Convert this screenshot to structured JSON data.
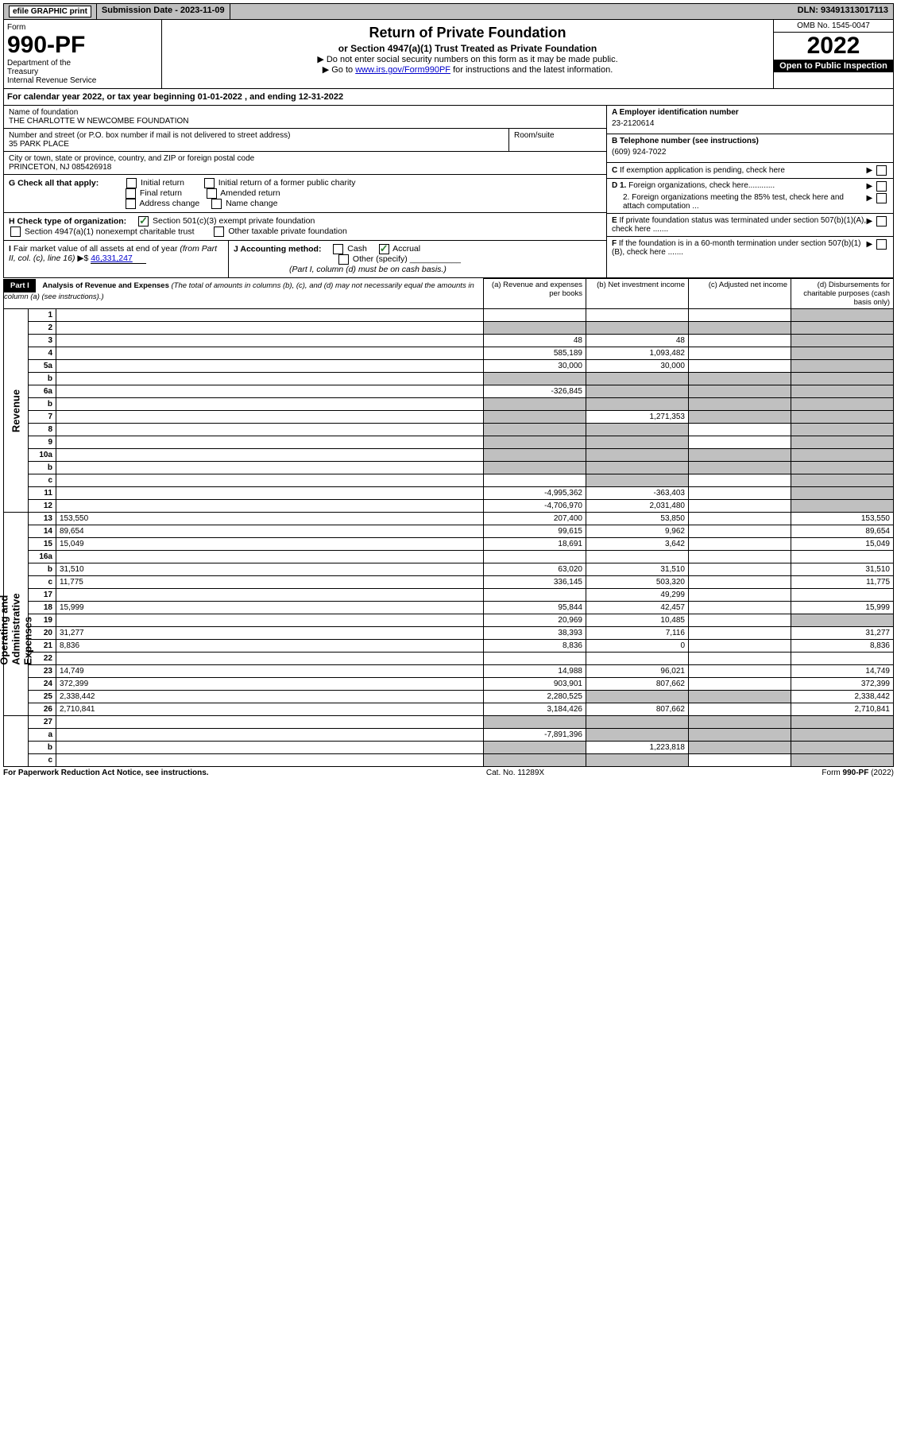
{
  "topbar": {
    "efile": "efile GRAPHIC print",
    "submission": "Submission Date - 2023-11-09",
    "dln": "DLN: 93491313017113"
  },
  "header": {
    "form_label": "Form",
    "form_number": "990-PF",
    "dept": "Department of the Treasury\nInternal Revenue Service",
    "title": "Return of Private Foundation",
    "subtitle": "or Section 4947(a)(1) Trust Treated as Private Foundation",
    "note1": "▶ Do not enter social security numbers on this form as it may be made public.",
    "note2_prefix": "▶ Go to ",
    "note2_link": "www.irs.gov/Form990PF",
    "note2_suffix": " for instructions and the latest information.",
    "omb": "OMB No. 1545-0047",
    "year": "2022",
    "open": "Open to Public Inspection"
  },
  "calyear": "For calendar year 2022, or tax year beginning 01-01-2022                              , and ending 12-31-2022",
  "org": {
    "name_label": "Name of foundation",
    "name": "THE CHARLOTTE W NEWCOMBE FOUNDATION",
    "addr_label": "Number and street (or P.O. box number if mail is not delivered to street address)",
    "addr": "35 PARK PLACE",
    "room_label": "Room/suite",
    "city_label": "City or town, state or province, country, and ZIP or foreign postal code",
    "city": "PRINCETON, NJ  085426918"
  },
  "ein": {
    "a_label": "A Employer identification number",
    "a_val": "23-2120614",
    "b_label": "B Telephone number (see instructions)",
    "b_val": "(609) 924-7022",
    "c_label": "C If exemption application is pending, check here",
    "d1_label": "D 1. Foreign organizations, check here............",
    "d2_label": "2. Foreign organizations meeting the 85% test, check here and attach computation ...",
    "e_label": "E  If private foundation status was terminated under section 507(b)(1)(A), check here .......",
    "f_label": "F  If the foundation is in a 60-month termination under section 507(b)(1)(B), check here ......."
  },
  "g": {
    "label": "G Check all that apply:",
    "opts": [
      "Initial return",
      "Initial return of a former public charity",
      "Final return",
      "Amended return",
      "Address change",
      "Name change"
    ]
  },
  "h": {
    "label": "H Check type of organization:",
    "opt1": "Section 501(c)(3) exempt private foundation",
    "opt2": "Section 4947(a)(1) nonexempt charitable trust",
    "opt3": "Other taxable private foundation"
  },
  "i": {
    "label": "I Fair market value of all assets at end of year (from Part II, col. (c), line 16) ▶$",
    "val": "46,331,247"
  },
  "j": {
    "label": "J Accounting method:",
    "cash": "Cash",
    "accrual": "Accrual",
    "other": "Other (specify)",
    "note": "(Part I, column (d) must be on cash basis.)"
  },
  "part1": {
    "label": "Part I",
    "title": "Analysis of Revenue and Expenses",
    "title_note": "(The total of amounts in columns (b), (c), and (d) may not necessarily equal the amounts in column (a) (see instructions).)",
    "col_a": "(a)   Revenue and expenses per books",
    "col_b": "(b)   Net investment income",
    "col_c": "(c)   Adjusted net income",
    "col_d": "(d)   Disbursements for charitable purposes (cash basis only)"
  },
  "side": {
    "revenue": "Revenue",
    "expenses": "Operating and Administrative Expenses"
  },
  "rows": [
    {
      "n": "1",
      "d": "",
      "a": "",
      "b": "",
      "c": "",
      "shade_d": true
    },
    {
      "n": "2",
      "d": "",
      "a": "",
      "b": "",
      "c": "",
      "shade_all": true
    },
    {
      "n": "3",
      "d": "",
      "a": "48",
      "b": "48",
      "c": "",
      "shade_d": true
    },
    {
      "n": "4",
      "d": "",
      "a": "585,189",
      "b": "1,093,482",
      "c": "",
      "shade_d": true
    },
    {
      "n": "5a",
      "d": "",
      "a": "30,000",
      "b": "30,000",
      "c": "",
      "shade_d": true
    },
    {
      "n": "b",
      "d": "",
      "a": "",
      "b": "",
      "c": "",
      "shade_all": true
    },
    {
      "n": "6a",
      "d": "",
      "a": "-326,845",
      "b": "",
      "c": "",
      "shade_bcd": true
    },
    {
      "n": "b",
      "d": "",
      "a": "",
      "b": "",
      "c": "",
      "shade_all": true
    },
    {
      "n": "7",
      "d": "",
      "a": "",
      "b": "1,271,353",
      "c": "",
      "shade_a": true,
      "shade_cd": true
    },
    {
      "n": "8",
      "d": "",
      "a": "",
      "b": "",
      "c": "",
      "shade_ab": true,
      "shade_d": true
    },
    {
      "n": "9",
      "d": "",
      "a": "",
      "b": "",
      "c": "",
      "shade_ab": true,
      "shade_d": true
    },
    {
      "n": "10a",
      "d": "",
      "a": "",
      "b": "",
      "c": "",
      "shade_all": true
    },
    {
      "n": "b",
      "d": "",
      "a": "",
      "b": "",
      "c": "",
      "shade_all": true
    },
    {
      "n": "c",
      "d": "",
      "a": "",
      "b": "",
      "c": "",
      "shade_b": true,
      "shade_d": true
    },
    {
      "n": "11",
      "d": "",
      "a": "-4,995,362",
      "b": "-363,403",
      "c": "",
      "shade_d": true
    },
    {
      "n": "12",
      "d": "",
      "a": "-4,706,970",
      "b": "2,031,480",
      "c": "",
      "shade_d": true
    }
  ],
  "exp_rows": [
    {
      "n": "13",
      "d": "153,550",
      "a": "207,400",
      "b": "53,850",
      "c": ""
    },
    {
      "n": "14",
      "d": "89,654",
      "a": "99,615",
      "b": "9,962",
      "c": ""
    },
    {
      "n": "15",
      "d": "15,049",
      "a": "18,691",
      "b": "3,642",
      "c": ""
    },
    {
      "n": "16a",
      "d": "",
      "a": "",
      "b": "",
      "c": ""
    },
    {
      "n": "b",
      "d": "31,510",
      "a": "63,020",
      "b": "31,510",
      "c": ""
    },
    {
      "n": "c",
      "d": "11,775",
      "a": "336,145",
      "b": "503,320",
      "c": ""
    },
    {
      "n": "17",
      "d": "",
      "a": "",
      "b": "49,299",
      "c": ""
    },
    {
      "n": "18",
      "d": "15,999",
      "a": "95,844",
      "b": "42,457",
      "c": ""
    },
    {
      "n": "19",
      "d": "",
      "a": "20,969",
      "b": "10,485",
      "c": "",
      "shade_d": true
    },
    {
      "n": "20",
      "d": "31,277",
      "a": "38,393",
      "b": "7,116",
      "c": ""
    },
    {
      "n": "21",
      "d": "8,836",
      "a": "8,836",
      "b": "0",
      "c": ""
    },
    {
      "n": "22",
      "d": "",
      "a": "",
      "b": "",
      "c": ""
    },
    {
      "n": "23",
      "d": "14,749",
      "a": "14,988",
      "b": "96,021",
      "c": ""
    },
    {
      "n": "24",
      "d": "372,399",
      "a": "903,901",
      "b": "807,662",
      "c": ""
    },
    {
      "n": "25",
      "d": "2,338,442",
      "a": "2,280,525",
      "b": "",
      "c": "",
      "shade_bc": true
    },
    {
      "n": "26",
      "d": "2,710,841",
      "a": "3,184,426",
      "b": "807,662",
      "c": ""
    }
  ],
  "bottom_rows": [
    {
      "n": "27",
      "d": "",
      "a": "",
      "b": "",
      "c": "",
      "shade_all": true
    },
    {
      "n": "a",
      "d": "",
      "a": "-7,891,396",
      "b": "",
      "c": "",
      "shade_bcd": true
    },
    {
      "n": "b",
      "d": "",
      "a": "",
      "b": "1,223,818",
      "c": "",
      "shade_a": true,
      "shade_cd": true
    },
    {
      "n": "c",
      "d": "",
      "a": "",
      "b": "",
      "c": "",
      "shade_ab": true,
      "shade_d": true
    }
  ],
  "footer": {
    "left": "For Paperwork Reduction Act Notice, see instructions.",
    "center": "Cat. No. 11289X",
    "right": "Form 990-PF (2022)"
  }
}
